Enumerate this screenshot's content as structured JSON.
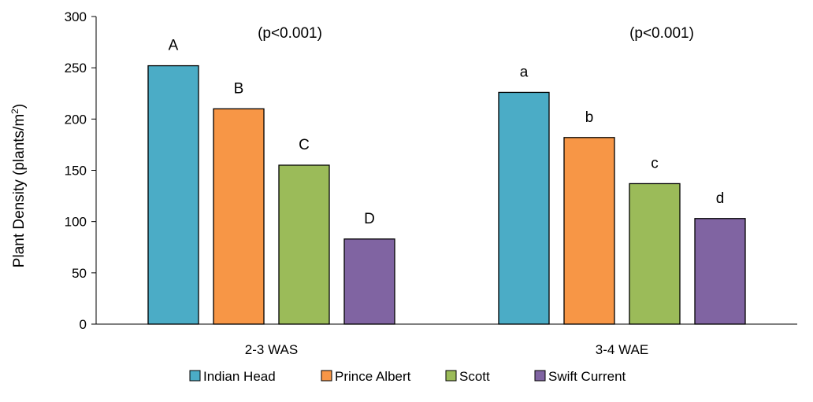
{
  "chart_data": {
    "type": "bar",
    "ylabel": "Plant Density (plants/m",
    "ylabel_sup": "2",
    "ylabel_close": ")",
    "ylim": [
      0,
      300
    ],
    "yticks": [
      0,
      50,
      100,
      150,
      200,
      250,
      300
    ],
    "grid": false,
    "legend_position": "bottom",
    "categories": [
      "2-3 WAS",
      "3-4 WAE"
    ],
    "series": [
      {
        "name": "Indian Head",
        "color": "#4BACC6",
        "values": [
          252,
          226
        ],
        "labels": [
          "A",
          "a"
        ]
      },
      {
        "name": "Prince Albert",
        "color": "#F79646",
        "values": [
          210,
          182
        ],
        "labels": [
          "B",
          "b"
        ]
      },
      {
        "name": "Scott",
        "color": "#9BBB59",
        "values": [
          155,
          137
        ],
        "labels": [
          "C",
          "c"
        ]
      },
      {
        "name": "Swift Current",
        "color": "#8064A2",
        "values": [
          83,
          103
        ],
        "labels": [
          "D",
          "d"
        ]
      }
    ],
    "annotations": [
      "(p<0.001)",
      "(p<0.001)"
    ]
  }
}
